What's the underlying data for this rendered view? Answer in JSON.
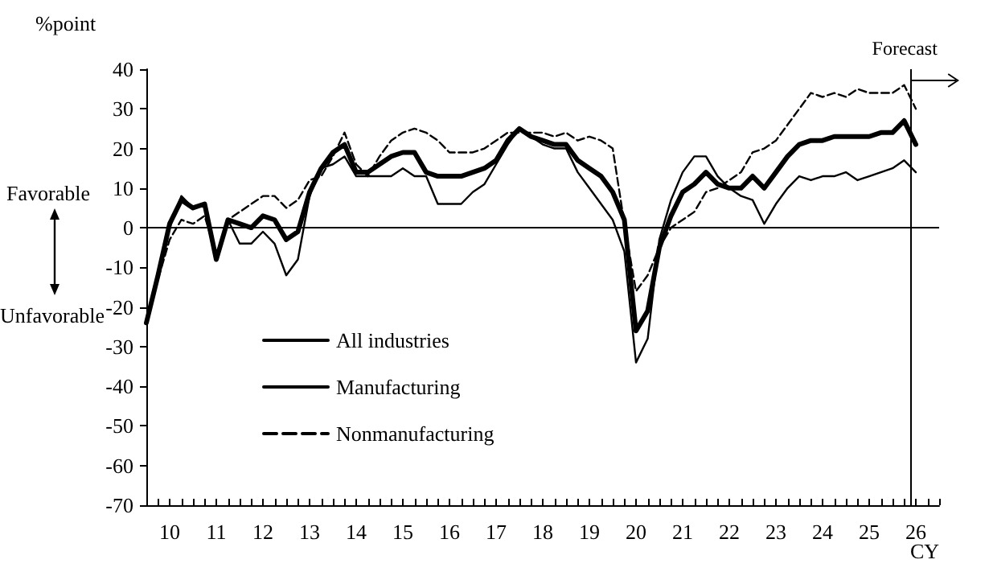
{
  "chart_data": {
    "type": "line",
    "ylabel": "%point",
    "xlabel": "CY",
    "annotations": [
      "Favorable",
      "Unfavorable"
    ],
    "x": [
      9.5,
      9.75,
      10,
      10.25,
      10.5,
      10.75,
      11,
      11.25,
      11.5,
      11.75,
      12,
      12.25,
      12.5,
      12.75,
      13,
      13.25,
      13.5,
      13.75,
      14,
      14.25,
      14.5,
      14.75,
      15,
      15.25,
      15.5,
      15.75,
      16,
      16.25,
      16.5,
      16.75,
      17,
      17.25,
      17.5,
      17.75,
      18,
      18.25,
      18.5,
      18.75,
      19,
      19.25,
      19.5,
      19.75,
      20,
      20.25,
      20.5,
      20.75,
      21,
      21.25,
      21.5,
      21.75,
      22,
      22.25,
      22.5,
      22.75,
      23,
      23.25,
      23.5,
      23.75,
      24,
      24.25,
      24.5,
      24.75,
      25,
      25.25,
      25.5,
      25.75,
      26
    ],
    "series": [
      {
        "name": "All industries",
        "color": "#000000",
        "line_style": "solid",
        "values": [
          -24,
          -12,
          1,
          7,
          5,
          6,
          -8,
          2,
          1,
          0,
          3,
          2,
          -3,
          -1,
          9,
          15,
          19,
          21,
          14,
          14,
          16,
          18,
          19,
          19,
          14,
          13,
          13,
          13,
          14,
          15,
          17,
          22,
          25,
          23,
          22,
          21,
          21,
          17,
          15,
          13,
          9,
          2,
          -26,
          -21,
          -5,
          3,
          9,
          11,
          14,
          11,
          10,
          10,
          13,
          10,
          14,
          18,
          21,
          22,
          22,
          23,
          23,
          23,
          23,
          24,
          24,
          27,
          21
        ]
      },
      {
        "name": "Manufacturing",
        "color": "#000000",
        "line_style": "solid",
        "values": [
          -24,
          -12,
          0,
          8,
          5,
          6,
          -8,
          2,
          -4,
          -4,
          -1,
          -4,
          -12,
          -8,
          8,
          15,
          16,
          18,
          13,
          13,
          13,
          13,
          15,
          13,
          13,
          6,
          6,
          6,
          9,
          11,
          16,
          21,
          25,
          23,
          21,
          20,
          20,
          14,
          10,
          6,
          2,
          -6,
          -34,
          -28,
          -3,
          7,
          14,
          18,
          18,
          13,
          10,
          8,
          7,
          1,
          6,
          10,
          13,
          12,
          13,
          13,
          14,
          12,
          13,
          14,
          15,
          17,
          14
        ]
      },
      {
        "name": "Nonmanufacturing",
        "color": "#000000",
        "line_style": "dashed",
        "values": [
          -24,
          -13,
          -3,
          2,
          1,
          3,
          -7,
          2,
          4,
          6,
          8,
          8,
          5,
          7,
          12,
          13,
          18,
          24,
          16,
          13,
          18,
          22,
          24,
          25,
          24,
          22,
          19,
          19,
          19,
          20,
          22,
          24,
          24,
          24,
          24,
          23,
          24,
          22,
          23,
          22,
          20,
          1,
          -16,
          -12,
          -5,
          0,
          2,
          4,
          9,
          10,
          12,
          14,
          19,
          20,
          22,
          26,
          30,
          34,
          33,
          34,
          33,
          35,
          34,
          34,
          34,
          36,
          30
        ]
      }
    ],
    "xlim": [
      9.5,
      26.5
    ],
    "xticks": [
      {
        "value": 9.5,
        "label": null
      },
      {
        "value": 9.75,
        "label": null
      },
      10,
      {
        "value": 10.25,
        "label": null
      },
      {
        "value": 10.5,
        "label": null
      },
      {
        "value": 10.75,
        "label": null
      },
      11,
      {
        "value": 11.25,
        "label": null
      },
      {
        "value": 11.5,
        "label": null
      },
      {
        "value": 11.75,
        "label": null
      },
      12,
      {
        "value": 12.25,
        "label": null
      },
      {
        "value": 12.5,
        "label": null
      },
      {
        "value": 12.75,
        "label": null
      },
      13,
      {
        "value": 13.25,
        "label": null
      },
      {
        "value": 13.5,
        "label": null
      },
      {
        "value": 13.75,
        "label": null
      },
      14,
      {
        "value": 14.25,
        "label": null
      },
      {
        "value": 14.5,
        "label": null
      },
      {
        "value": 14.75,
        "label": null
      },
      15,
      {
        "value": 15.25,
        "label": null
      },
      {
        "value": 15.5,
        "label": null
      },
      {
        "value": 15.75,
        "label": null
      },
      16,
      {
        "value": 16.25,
        "label": null
      },
      {
        "value": 16.5,
        "label": null
      },
      {
        "value": 16.75,
        "label": null
      },
      17,
      {
        "value": 17.25,
        "label": null
      },
      {
        "value": 17.5,
        "label": null
      },
      {
        "value": 17.75,
        "label": null
      },
      18,
      {
        "value": 18.25,
        "label": null
      },
      {
        "value": 18.5,
        "label": null
      },
      {
        "value": 18.75,
        "label": null
      },
      19,
      {
        "value": 19.25,
        "label": null
      },
      {
        "value": 19.5,
        "label": null
      },
      {
        "value": 19.75,
        "label": null
      },
      20,
      {
        "value": 20.25,
        "label": null
      },
      {
        "value": 20.5,
        "label": null
      },
      {
        "value": 20.75,
        "label": null
      },
      21,
      {
        "value": 21.25,
        "label": null
      },
      {
        "value": 21.5,
        "label": null
      },
      {
        "value": 21.75,
        "label": null
      },
      22,
      {
        "value": 22.25,
        "label": null
      },
      {
        "value": 22.5,
        "label": null
      },
      {
        "value": 22.75,
        "label": null
      },
      23,
      {
        "value": 23.25,
        "label": null
      },
      {
        "value": 23.5,
        "label": null
      },
      {
        "value": 23.75,
        "label": null
      },
      24,
      {
        "value": 24.25,
        "label": null
      },
      {
        "value": 24.5,
        "label": null
      },
      {
        "value": 24.75,
        "label": null
      },
      25,
      {
        "value": 25.25,
        "label": null
      },
      {
        "value": 25.5,
        "label": null
      },
      {
        "value": 25.75,
        "label": null
      },
      26,
      {
        "value": 26.25,
        "label": null
      },
      {
        "value": 26.5,
        "label": null
      }
    ],
    "ylim": [
      -70,
      40
    ],
    "yticks": [
      -70,
      -60,
      -50,
      -40,
      -30,
      -20,
      -10,
      0,
      10,
      20,
      30,
      40
    ],
    "ref_lines": [
      {
        "axis": "y",
        "value": 0,
        "label": null
      },
      {
        "axis": "x",
        "value": 25.9,
        "label": "Forecast"
      }
    ],
    "grid": false,
    "legend": "bottom left",
    "marker": "none"
  }
}
